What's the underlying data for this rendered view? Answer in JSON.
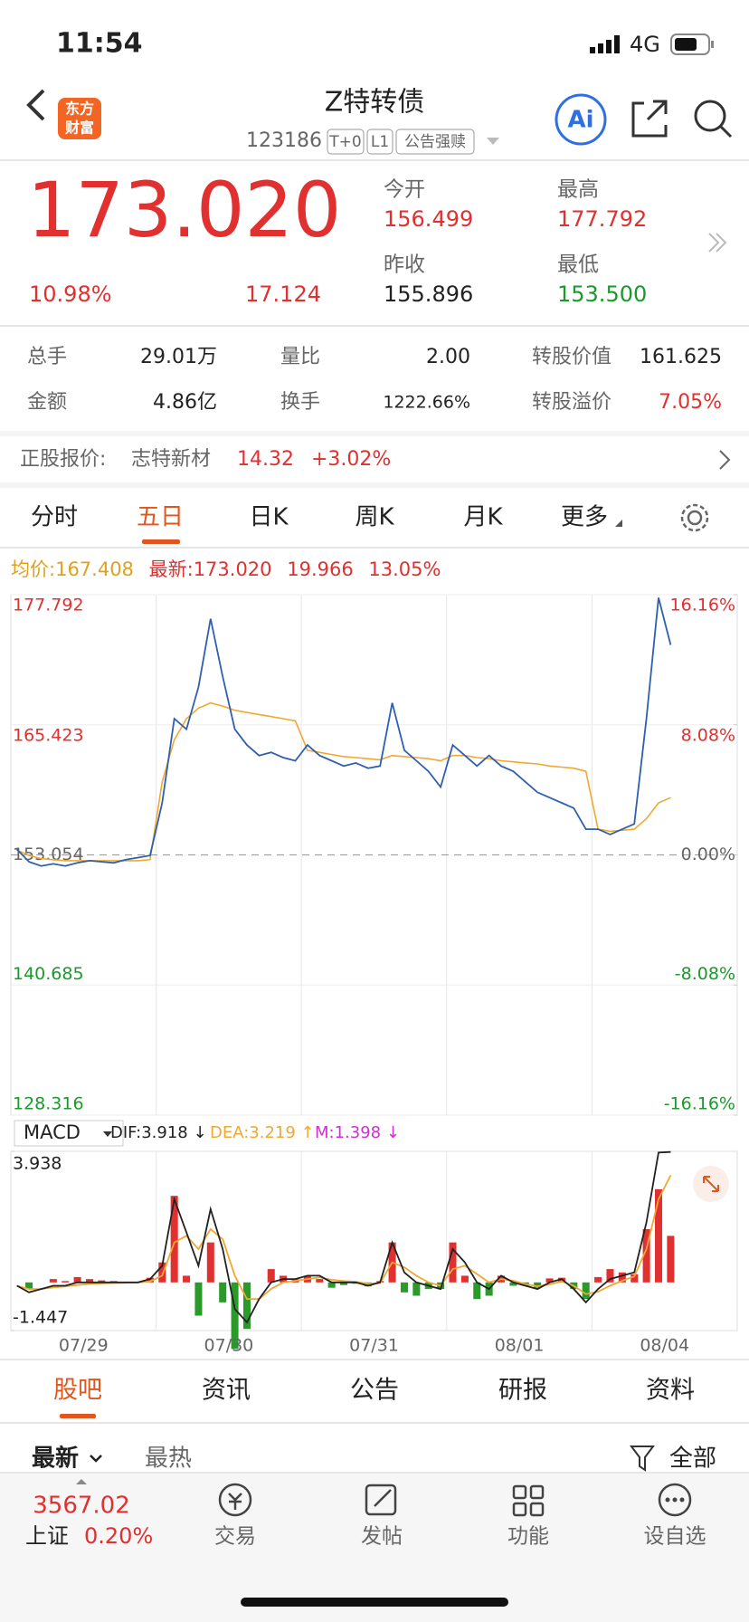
{
  "status_bar": {
    "time": "11:54",
    "network": "4G"
  },
  "header": {
    "logo": [
      "东方",
      "财富"
    ],
    "title": "Z特转债",
    "code": "123186",
    "badges": [
      "T+0",
      "L1",
      "公告强赎"
    ],
    "ai": "Ai"
  },
  "quote": {
    "price": "173.020",
    "change_pct": "10.98%",
    "change": "17.124",
    "fields": [
      {
        "label": "今开",
        "value": "156.499"
      },
      {
        "label": "最高",
        "value": "177.792"
      },
      {
        "label": "昨收",
        "value": "155.896"
      },
      {
        "label": "最低",
        "value": "153.500"
      }
    ]
  },
  "stats": [
    [
      {
        "label": "总手",
        "value": "29.01万"
      },
      {
        "label": "量比",
        "value": "2.00"
      },
      {
        "label": "转股价值",
        "value": "161.625"
      }
    ],
    [
      {
        "label": "金额",
        "value": "4.86亿"
      },
      {
        "label": "换手",
        "value": "1222.66%"
      },
      {
        "label": "转股溢价",
        "value": "7.05%"
      }
    ]
  ],
  "stock": {
    "label": "正股报价:",
    "name": "志特新材",
    "price": "14.32",
    "change": "+3.02%"
  },
  "period_tabs": [
    "分时",
    "五日",
    "日K",
    "周K",
    "月K",
    "更多"
  ],
  "info": {
    "avg_label": "均价:",
    "avg": "167.408",
    "last_label": "最新:",
    "last": "173.020",
    "change": "19.966",
    "change_pct": "13.05%"
  },
  "chart_data": [
    {
      "type": "line",
      "ylim": [
        128.316,
        177.792
      ],
      "yticks": [
        177.792,
        165.423,
        153.054,
        140.685,
        128.316
      ],
      "y2lim": [
        -16.16,
        16.16
      ],
      "y2ticks": [
        {
          "value": 16.16,
          "label": "16.16%"
        },
        {
          "value": 8.08,
          "label": "8.08%"
        },
        {
          "value": 0,
          "label": "0.00%"
        },
        {
          "value": -8.08,
          "label": "-8.08%"
        },
        {
          "value": -16.16,
          "label": "-16.16%"
        }
      ],
      "series": [
        {
          "color": "#2f5fb0",
          "values": [
            153.6,
            152.4,
            152.0,
            152.2,
            152.0,
            152.3,
            152.5,
            152.4,
            152.3,
            152.6,
            152.8,
            153.0,
            158.0,
            166.0,
            165.0,
            169.0,
            175.5,
            170.0,
            165.0,
            163.5,
            162.5,
            162.8,
            162.3,
            162.0,
            163.5,
            162.5,
            162.0,
            161.5,
            161.8,
            161.3,
            161.5,
            167.5,
            163.0,
            162.0,
            161.0,
            159.5,
            163.5,
            162.5,
            161.5,
            162.5,
            161.5,
            161.0,
            160.0,
            159.0,
            158.5,
            158.0,
            157.5,
            155.5,
            155.5,
            155.0,
            155.5,
            156.0,
            166.0,
            177.5,
            173.02,
            null,
            null,
            null,
            null,
            null
          ]
        },
        {
          "color": "#f0a830",
          "values": [
            153.5,
            153.0,
            152.7,
            152.6,
            152.5,
            152.5,
            152.5,
            152.5,
            152.5,
            152.5,
            152.5,
            152.6,
            160.0,
            164.0,
            166.0,
            167.0,
            167.5,
            167.2,
            166.8,
            166.6,
            166.4,
            166.2,
            166.0,
            165.8,
            163.0,
            162.8,
            162.6,
            162.4,
            162.3,
            162.2,
            162.1,
            162.5,
            162.4,
            162.3,
            162.2,
            162.0,
            162.5,
            162.5,
            162.3,
            162.2,
            162.0,
            161.9,
            161.8,
            161.7,
            161.5,
            161.4,
            161.3,
            161.0,
            155.5,
            155.3,
            155.4,
            155.5,
            156.5,
            158.0,
            158.5,
            null,
            null,
            null,
            null,
            null
          ]
        }
      ]
    },
    {
      "type": "macd",
      "title": "MACD",
      "ylim": [
        -1.447,
        3.938
      ],
      "yticks": [
        3.938,
        -1.447
      ],
      "days": [
        "07/29",
        "07/30",
        "07/31",
        "08/01",
        "08/04"
      ],
      "series": [
        {
          "label": "DIF:3.918 ↓",
          "color": "#222222",
          "values": [
            -0.1,
            -0.3,
            -0.2,
            -0.1,
            -0.1,
            0,
            0,
            0,
            0,
            0,
            0,
            0.1,
            0.5,
            2.5,
            1.5,
            0.5,
            2.2,
            1.0,
            -0.8,
            -1.2,
            -0.5,
            0,
            0.1,
            0.1,
            0.2,
            0.2,
            0,
            0,
            0,
            -0.1,
            0,
            1.2,
            0.3,
            0,
            -0.1,
            -0.2,
            1.0,
            0.6,
            0,
            -0.2,
            0.2,
            0,
            -0.1,
            -0.2,
            0,
            0.1,
            -0.2,
            -0.6,
            -0.2,
            0.1,
            0.2,
            0.3,
            1.8,
            3.9,
            3.918,
            null,
            null,
            null,
            null,
            null
          ]
        },
        {
          "label": "DEA:3.219 ↑",
          "color": "#f0a830",
          "values": [
            -0.1,
            -0.2,
            -0.2,
            -0.15,
            -0.12,
            -0.08,
            -0.05,
            -0.03,
            -0.02,
            -0.01,
            0,
            0.03,
            0.2,
            1.2,
            1.4,
            1.0,
            1.6,
            1.3,
            0.2,
            -0.5,
            -0.5,
            -0.2,
            0,
            0.05,
            0.1,
            0.15,
            0.08,
            0.04,
            0.02,
            -0.04,
            -0.02,
            0.6,
            0.45,
            0.2,
            0,
            -0.1,
            0.4,
            0.5,
            0.25,
            0,
            0.1,
            0.05,
            -0.05,
            -0.12,
            -0.06,
            0.03,
            -0.1,
            -0.35,
            -0.28,
            -0.1,
            0.05,
            0.18,
            1.0,
            2.5,
            3.219,
            null,
            null,
            null,
            null,
            null
          ]
        },
        {
          "label": "M:1.398 ↓",
          "color": "#d030d0",
          "values": [
            0,
            -0.2,
            0,
            0.1,
            0.04,
            0.16,
            0.1,
            0.06,
            0.04,
            0.02,
            0,
            0.14,
            0.6,
            2.6,
            0.2,
            -1.0,
            1.2,
            -0.6,
            -2.0,
            -1.4,
            0,
            0.4,
            0.2,
            0.1,
            0.2,
            0.1,
            -0.16,
            -0.08,
            -0.04,
            -0.12,
            0.04,
            1.2,
            -0.3,
            -0.4,
            -0.2,
            -0.2,
            1.2,
            0.2,
            -0.5,
            -0.4,
            0.2,
            -0.1,
            -0.1,
            -0.16,
            0.12,
            0.14,
            -0.2,
            -0.5,
            0.16,
            0.4,
            0.3,
            0.24,
            1.6,
            2.8,
            1.398,
            null,
            null,
            null,
            null,
            null
          ]
        }
      ]
    }
  ],
  "tabs": [
    "股吧",
    "资讯",
    "公告",
    "研报",
    "资料"
  ],
  "filters": [
    "最新",
    "最热",
    "全部"
  ],
  "index": {
    "value": "3567.02",
    "name": "上证",
    "change": "0.20%"
  },
  "nav": [
    "交易",
    "发帖",
    "功能",
    "设自选"
  ]
}
